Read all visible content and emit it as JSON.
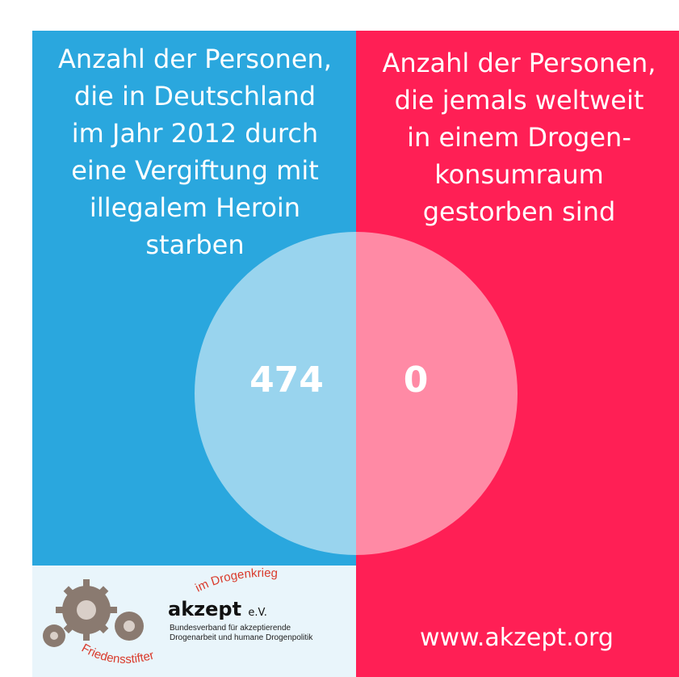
{
  "colors": {
    "left_panel": "#2aa7de",
    "right_panel": "#ff1f55",
    "left_circle": "#99d4ee",
    "right_circle": "#ff8aa5",
    "logo_background": "#e9f5fb",
    "arc_text": "#d93a2b"
  },
  "left": {
    "heading_lines": [
      "Anzahl der Personen,",
      "die in Deutschland",
      "im Jahr 2012 durch",
      "eine Vergiftung mit",
      "illegalem Heroin",
      "starben"
    ],
    "value": "474"
  },
  "right": {
    "heading_lines": [
      "Anzahl der Personen,",
      "die jemals weltweit",
      "in einem Drogen-",
      "konsumraum",
      "gestorben sind"
    ],
    "value": "0"
  },
  "logo": {
    "brand": "akzept",
    "brand_suffix": "e.V.",
    "tagline_lines": [
      "Bundesverband für akzeptierende",
      "Drogenarbeit und humane Drogenpolitik"
    ],
    "arc_top": "im Drogenkrieg",
    "arc_bottom": "Friedensstifter",
    "icon": "gears-icon"
  },
  "website": "www.akzept.org"
}
